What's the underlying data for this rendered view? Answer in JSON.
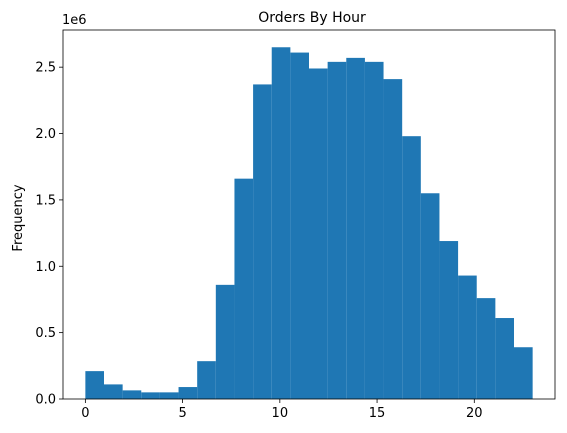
{
  "chart_data": {
    "type": "bar",
    "title": "Orders By Hour",
    "xlabel": "",
    "ylabel": "Frequency",
    "y_offset_label": "1e6",
    "bin_edges": [
      0,
      0.9583,
      1.9167,
      2.875,
      3.8333,
      4.7917,
      5.75,
      6.7083,
      7.6667,
      8.625,
      9.5833,
      10.5417,
      11.5,
      12.4583,
      13.4167,
      14.375,
      15.3333,
      16.2917,
      17.25,
      18.2083,
      19.1667,
      20.125,
      21.0833,
      22.0417,
      23
    ],
    "values": [
      0.21,
      0.11,
      0.065,
      0.05,
      0.05,
      0.09,
      0.285,
      0.86,
      1.66,
      2.37,
      2.65,
      2.61,
      2.49,
      2.54,
      2.57,
      2.54,
      2.41,
      1.98,
      1.55,
      1.19,
      0.93,
      0.76,
      0.61,
      0.39
    ],
    "xlim": [
      -1.15,
      24.15
    ],
    "ylim": [
      0,
      2.78
    ],
    "x_ticks": [
      0,
      5,
      10,
      15,
      20
    ],
    "x_tick_labels": [
      "0",
      "5",
      "10",
      "15",
      "20"
    ],
    "y_ticks": [
      0,
      0.5,
      1.0,
      1.5,
      2.0,
      2.5
    ],
    "y_tick_labels": [
      "0.0",
      "0.5",
      "1.0",
      "1.5",
      "2.0",
      "2.5"
    ],
    "grid": false,
    "bar_color": "#1f77b4"
  }
}
